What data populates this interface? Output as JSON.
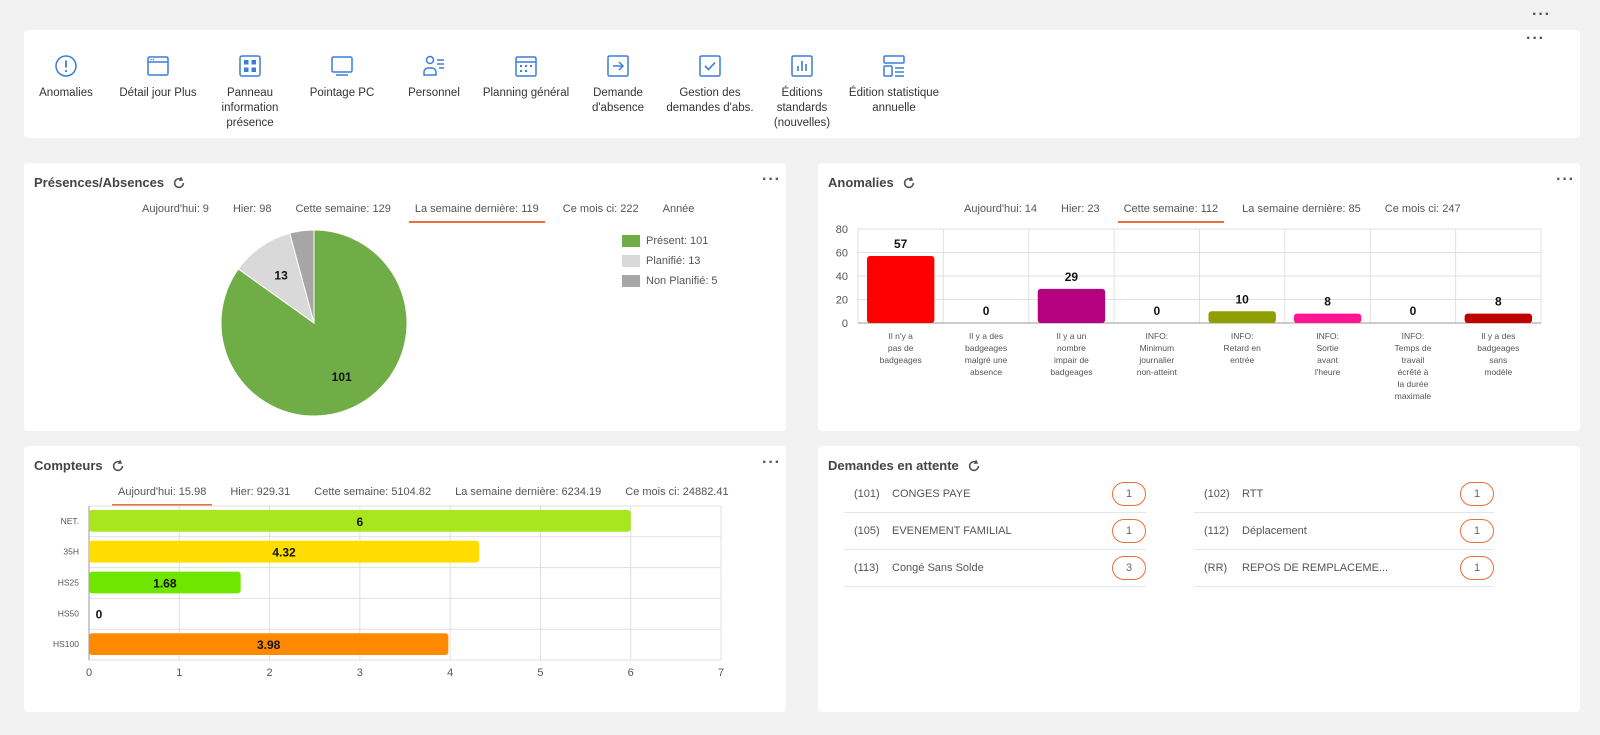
{
  "toolbar": {
    "items": [
      {
        "label": "Anomalies",
        "icon": "alert-circle-icon"
      },
      {
        "label": "Détail jour Plus",
        "icon": "browser-window-icon"
      },
      {
        "label": "Panneau information présence",
        "icon": "grid-icon"
      },
      {
        "label": "Pointage PC",
        "icon": "monitor-icon"
      },
      {
        "label": "Personnel",
        "icon": "person-list-icon"
      },
      {
        "label": "Planning général",
        "icon": "calendar-icon"
      },
      {
        "label": "Demande d'absence",
        "icon": "arrow-box-icon"
      },
      {
        "label": "Gestion des demandes d'abs.",
        "icon": "checkbox-icon"
      },
      {
        "label": "Éditions standards (nouvelles)",
        "icon": "bar-report-icon"
      },
      {
        "label": "Édition statistique annuelle",
        "icon": "stats-doc-icon"
      }
    ]
  },
  "presences": {
    "title": "Présences/Absences",
    "tabs": [
      "Aujourd'hui: 9",
      "Hier: 98",
      "Cette semaine: 129",
      "La semaine dernière: 119",
      "Ce mois ci: 222",
      "Année"
    ],
    "active_tab": 3
  },
  "anomalies": {
    "title": "Anomalies",
    "tabs": [
      "Aujourd'hui: 14",
      "Hier: 23",
      "Cette semaine: 112",
      "La semaine dernière: 85",
      "Ce mois ci: 247"
    ],
    "active_tab": 2
  },
  "compteurs": {
    "title": "Compteurs",
    "tabs": [
      "Aujourd'hui: 15.98",
      "Hier: 929.31",
      "Cette semaine: 5104.82",
      "La semaine dernière: 6234.19",
      "Ce mois ci: 24882.41"
    ],
    "active_tab": 0
  },
  "demandes": {
    "title": "Demandes en attente",
    "items": [
      {
        "code": "(101)",
        "name": "CONGES PAYE",
        "count": "1"
      },
      {
        "code": "(102)",
        "name": "RTT",
        "count": "1"
      },
      {
        "code": "(105)",
        "name": "EVENEMENT FAMILIAL",
        "count": "1"
      },
      {
        "code": "(112)",
        "name": "Déplacement",
        "count": "1"
      },
      {
        "code": "(113)",
        "name": "Congé Sans Solde",
        "count": "3"
      },
      {
        "code": "(RR)",
        "name": "REPOS DE REMPLACEME...",
        "count": "1"
      }
    ]
  },
  "chart_data": [
    {
      "type": "pie",
      "slices": [
        {
          "name": "Présent: 101",
          "value": 101,
          "color": "#70ad47"
        },
        {
          "name": "Planifié: 13",
          "value": 13,
          "color": "#d9d9d9"
        },
        {
          "name": "Non Planifié: 5",
          "value": 5,
          "color": "#a6a6a6"
        }
      ],
      "labels_shown": [
        "101",
        "13"
      ],
      "legend": "right"
    },
    {
      "type": "bar",
      "categories": [
        [
          "Il n'y a",
          "pas de",
          "badgeages"
        ],
        [
          "Il y a des",
          "badgeages",
          "malgré une",
          "absence"
        ],
        [
          "Il y a un",
          "nombre",
          "impair de",
          "badgeages"
        ],
        [
          "INFO:",
          "Minimum",
          "journalier",
          "non-atteint"
        ],
        [
          "INFO:",
          "Retard en",
          "entrée"
        ],
        [
          "INFO:",
          "Sortie",
          "avant",
          "l'heure"
        ],
        [
          "INFO:",
          "Temps de",
          "travail",
          "écrêté à",
          "la durée",
          "maximale"
        ],
        [
          "Il y a des",
          "badgeages",
          "sans",
          "modèle"
        ]
      ],
      "values": [
        57,
        0,
        29,
        0,
        10,
        8,
        0,
        8
      ],
      "colors": [
        "#ff0000",
        "#aaaaaa",
        "#b5007f",
        "#aaaaaa",
        "#8f9e00",
        "#ff1493",
        "#aaaaaa",
        "#c00000"
      ],
      "ylim": [
        0,
        80
      ],
      "yticks": [
        0,
        20,
        40,
        60,
        80
      ],
      "grid": true
    },
    {
      "type": "bar",
      "orientation": "horizontal",
      "categories": [
        "NET.",
        "35H",
        "HS25",
        "HS50",
        "HS100"
      ],
      "values": [
        6,
        4.32,
        1.68,
        0,
        3.98
      ],
      "colors": [
        "#a8e61d",
        "#ffdd00",
        "#6ee600",
        "#cccccc",
        "#ff8a00"
      ],
      "xlim": [
        0,
        7
      ],
      "xticks": [
        0,
        1,
        2,
        3,
        4,
        5,
        6,
        7
      ],
      "grid": true
    }
  ]
}
